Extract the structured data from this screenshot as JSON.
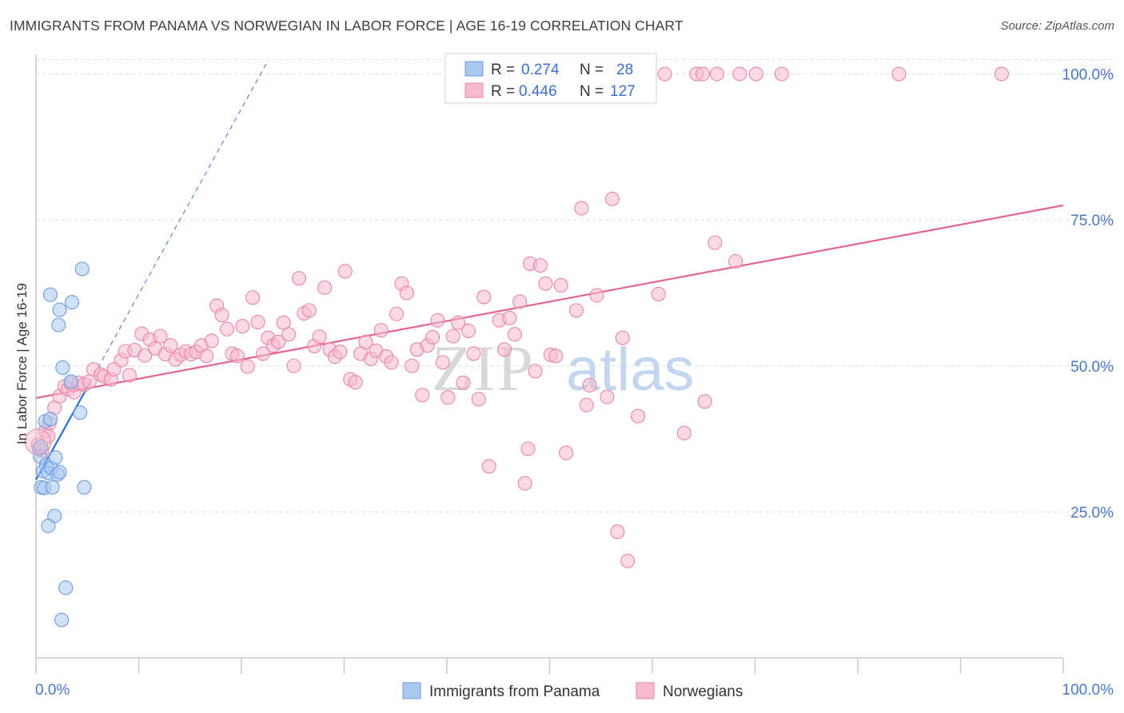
{
  "header": {
    "title": "IMMIGRANTS FROM PANAMA VS NORWEGIAN IN LABOR FORCE | AGE 16-19 CORRELATION CHART",
    "source": "Source: ZipAtlas.com"
  },
  "watermark": {
    "zip": "ZIP",
    "atlas": "atlas"
  },
  "legend": {
    "rows": [
      {
        "r_label": "R =",
        "r_value": "0.274",
        "n_label": "N =",
        "n_value": "28",
        "color": "#a8c8f0",
        "stroke": "#6e9be0"
      },
      {
        "r_label": "R =",
        "r_value": "0.446",
        "n_label": "N =",
        "n_value": "127",
        "color": "#f7b9cd",
        "stroke": "#e886a6"
      }
    ]
  },
  "bottom_legend": [
    {
      "label": "Immigrants from Panama",
      "color": "#a8c8f0",
      "stroke": "#6e9be0"
    },
    {
      "label": "Norwegians",
      "color": "#f7b9cd",
      "stroke": "#e886a6"
    }
  ],
  "chart_data": {
    "type": "scatter",
    "title": "IMMIGRANTS FROM PANAMA VS NORWEGIAN IN LABOR FORCE | AGE 16-19 CORRELATION CHART",
    "xlabel": "",
    "ylabel": "In Labor Force | Age 16-19",
    "xlim": [
      0,
      100
    ],
    "ylim": [
      0,
      105
    ],
    "x_tick_labels": [
      "0.0%",
      "100.0%"
    ],
    "y_ticks": [
      25,
      50,
      75,
      100
    ],
    "y_tick_labels": [
      "25.0%",
      "50.0%",
      "75.0%",
      "100.0%"
    ],
    "series": [
      {
        "name": "Immigrants from Panama",
        "color": "#a8c8f0",
        "stroke": "#6e9be0",
        "trend_color": "#2e6fd6",
        "trend": {
          "x0": 0,
          "y0": 30.5,
          "x1": 5.2,
          "y1": 47
        },
        "trend_ext": {
          "x0": 5.2,
          "y0": 47,
          "x1": 22.5,
          "y1": 102
        },
        "points": [
          [
            0.3,
            35.8
          ],
          [
            0.4,
            34.5
          ],
          [
            0.5,
            29.2
          ],
          [
            0.8,
            29.1
          ],
          [
            1.0,
            33.0
          ],
          [
            0.7,
            32.0
          ],
          [
            1.2,
            31.7
          ],
          [
            1.5,
            32.5
          ],
          [
            1.9,
            34.3
          ],
          [
            1.6,
            29.2
          ],
          [
            2.1,
            31.4
          ],
          [
            2.3,
            31.8
          ],
          [
            0.9,
            40.5
          ],
          [
            1.4,
            40.9
          ],
          [
            2.6,
            49.7
          ],
          [
            3.4,
            47.3
          ],
          [
            4.3,
            42.0
          ],
          [
            4.7,
            29.2
          ],
          [
            1.4,
            62.2
          ],
          [
            2.3,
            59.6
          ],
          [
            2.2,
            57.0
          ],
          [
            3.5,
            60.9
          ],
          [
            4.5,
            66.6
          ],
          [
            1.8,
            24.3
          ],
          [
            1.2,
            22.6
          ],
          [
            2.9,
            12.0
          ],
          [
            2.5,
            6.5
          ],
          [
            0.5,
            36.2
          ]
        ]
      },
      {
        "name": "Norwegians",
        "color": "#f7b9cd",
        "stroke": "#e886a6",
        "trend_color": "#e3648f",
        "trend": {
          "x0": 0,
          "y0": 44.5,
          "x1": 100,
          "y1": 77.5
        },
        "points": [
          [
            0.2,
            36.5
          ],
          [
            0.6,
            35.5
          ],
          [
            0.9,
            38.8
          ],
          [
            1.2,
            38.0
          ],
          [
            1.3,
            40.2
          ],
          [
            1.8,
            42.8
          ],
          [
            2.3,
            44.8
          ],
          [
            2.8,
            46.5
          ],
          [
            3.1,
            46.0
          ],
          [
            3.4,
            47.0
          ],
          [
            3.7,
            45.5
          ],
          [
            4.2,
            47.1
          ],
          [
            4.7,
            46.8
          ],
          [
            5.2,
            47.3
          ],
          [
            5.6,
            49.4
          ],
          [
            6.3,
            48.5
          ],
          [
            6.6,
            48.2
          ],
          [
            7.3,
            47.7
          ],
          [
            7.6,
            49.4
          ],
          [
            8.3,
            51.0
          ],
          [
            8.7,
            52.5
          ],
          [
            9.1,
            48.4
          ],
          [
            9.6,
            52.7
          ],
          [
            10.3,
            55.5
          ],
          [
            10.6,
            51.8
          ],
          [
            11.1,
            54.5
          ],
          [
            11.6,
            53.0
          ],
          [
            12.1,
            55.1
          ],
          [
            12.6,
            52.0
          ],
          [
            13.1,
            53.5
          ],
          [
            13.6,
            51.1
          ],
          [
            14.1,
            51.9
          ],
          [
            14.6,
            52.5
          ],
          [
            15.1,
            52.0
          ],
          [
            15.6,
            52.4
          ],
          [
            16.1,
            53.5
          ],
          [
            16.6,
            51.7
          ],
          [
            17.1,
            54.3
          ],
          [
            17.6,
            60.3
          ],
          [
            18.1,
            58.7
          ],
          [
            18.6,
            56.3
          ],
          [
            19.1,
            52.1
          ],
          [
            19.6,
            51.7
          ],
          [
            20.1,
            56.8
          ],
          [
            20.6,
            49.9
          ],
          [
            21.1,
            61.7
          ],
          [
            21.6,
            57.5
          ],
          [
            22.1,
            52.1
          ],
          [
            22.6,
            54.8
          ],
          [
            23.1,
            53.5
          ],
          [
            23.6,
            54.1
          ],
          [
            24.1,
            57.4
          ],
          [
            24.6,
            55.4
          ],
          [
            25.1,
            50.0
          ],
          [
            25.6,
            65.0
          ],
          [
            26.1,
            59.0
          ],
          [
            26.6,
            59.5
          ],
          [
            27.1,
            53.4
          ],
          [
            27.6,
            55.0
          ],
          [
            28.1,
            63.4
          ],
          [
            28.6,
            52.8
          ],
          [
            29.1,
            51.6
          ],
          [
            29.6,
            52.4
          ],
          [
            30.1,
            66.2
          ],
          [
            30.6,
            47.7
          ],
          [
            31.1,
            47.2
          ],
          [
            31.6,
            52.1
          ],
          [
            32.1,
            54.1
          ],
          [
            32.6,
            51.2
          ],
          [
            33.1,
            52.6
          ],
          [
            33.6,
            56.1
          ],
          [
            34.1,
            51.6
          ],
          [
            34.6,
            50.6
          ],
          [
            35.1,
            58.9
          ],
          [
            35.6,
            64.1
          ],
          [
            36.1,
            62.5
          ],
          [
            36.6,
            50.0
          ],
          [
            37.1,
            52.8
          ],
          [
            37.6,
            45.0
          ],
          [
            38.1,
            53.5
          ],
          [
            38.6,
            54.9
          ],
          [
            39.1,
            57.8
          ],
          [
            39.6,
            50.6
          ],
          [
            40.1,
            44.6
          ],
          [
            40.6,
            55.1
          ],
          [
            41.1,
            57.4
          ],
          [
            41.6,
            47.1
          ],
          [
            42.1,
            56.0
          ],
          [
            42.6,
            52.1
          ],
          [
            43.1,
            44.3
          ],
          [
            43.6,
            61.8
          ],
          [
            44.1,
            32.8
          ],
          [
            45.1,
            57.8
          ],
          [
            45.6,
            52.8
          ],
          [
            46.1,
            58.2
          ],
          [
            46.6,
            55.4
          ],
          [
            47.1,
            61.0
          ],
          [
            47.6,
            29.9
          ],
          [
            47.9,
            35.8
          ],
          [
            48.1,
            67.5
          ],
          [
            48.6,
            49.1
          ],
          [
            49.1,
            67.2
          ],
          [
            49.6,
            64.1
          ],
          [
            50.1,
            51.9
          ],
          [
            50.6,
            51.7
          ],
          [
            51.1,
            63.8
          ],
          [
            51.6,
            35.1
          ],
          [
            52.6,
            59.5
          ],
          [
            53.1,
            77.0
          ],
          [
            53.6,
            43.3
          ],
          [
            53.9,
            46.7
          ],
          [
            54.6,
            62.1
          ],
          [
            55.6,
            44.7
          ],
          [
            56.1,
            78.6
          ],
          [
            56.6,
            21.6
          ],
          [
            57.1,
            54.8
          ],
          [
            57.6,
            16.6
          ],
          [
            58.6,
            41.4
          ],
          [
            60.6,
            62.3
          ],
          [
            63.1,
            38.5
          ],
          [
            65.1,
            43.9
          ],
          [
            66.1,
            71.1
          ],
          [
            68.1,
            67.9
          ],
          [
            61.2,
            100.0
          ],
          [
            64.3,
            100.0
          ],
          [
            66.3,
            100.0
          ],
          [
            68.5,
            100.0
          ],
          [
            70.1,
            100.0
          ],
          [
            72.6,
            100.0
          ],
          [
            84.0,
            100.0
          ],
          [
            94.0,
            100.0
          ],
          [
            64.9,
            100.0
          ]
        ]
      }
    ]
  }
}
